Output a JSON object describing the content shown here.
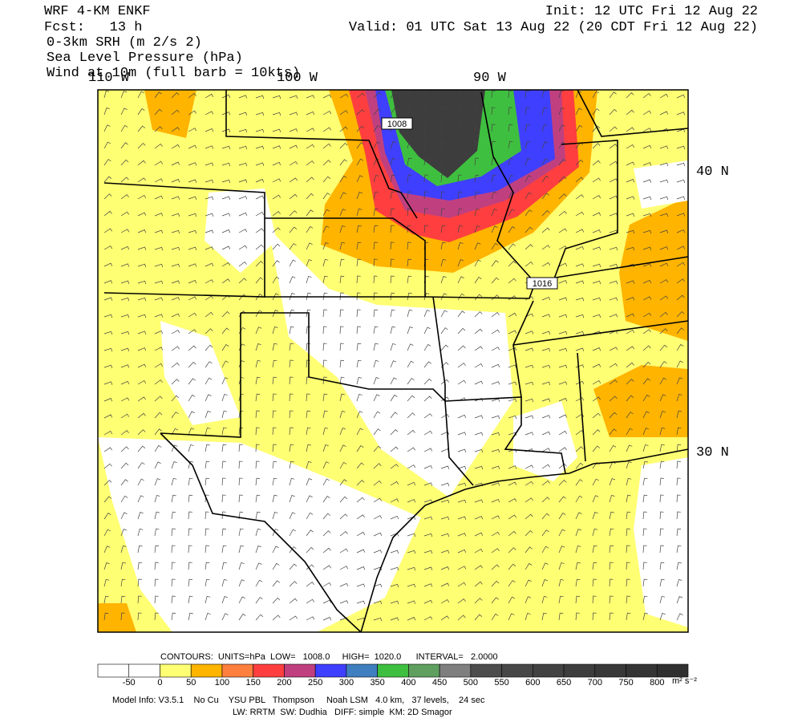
{
  "header": {
    "left": [
      "WRF 4-KM ENKF",
      "Fcst:   13 h",
      "0-3km SRH (m 2/s 2)",
      "Sea Level Pressure (hPa)",
      "Wind at 10m (full barb = 10kts)"
    ],
    "right": [
      "Init: 12 UTC Fri 12 Aug 22",
      "Valid: 01 UTC Sat 13 Aug 22 (20 CDT Fri 12 Aug 22)"
    ]
  },
  "map": {
    "lon_labels": [
      "110 W",
      "100 W",
      "90 W"
    ],
    "lat_labels": [
      "40 N",
      "30 N"
    ],
    "contour_labels": [
      "1008",
      "1016"
    ]
  },
  "contours": "CONTOURS:  UNITS=hPa  LOW=   1008.0     HIGH=  1020.0      INTERVAL=   2.0000",
  "colorbar": {
    "ticks": [
      -50,
      0,
      50,
      100,
      150,
      200,
      250,
      300,
      350,
      400,
      450,
      500,
      550,
      600,
      650,
      700,
      750,
      800
    ],
    "colors": [
      "#ffffff",
      "#ffffff",
      "#ffff73",
      "#ffb400",
      "#ff7f3f",
      "#ff3f3f",
      "#c0407f",
      "#3f3fff",
      "#3f7fc0",
      "#3fbf3f",
      "#5f9f5f",
      "#7f7f7f",
      "#4c4c4c",
      "#474747",
      "#424242",
      "#3d3d3d",
      "#383838",
      "#343434",
      "#303030"
    ],
    "units": "m² s⁻²"
  },
  "footer": [
    "Model Info: V3.5.1    No Cu    YSU PBL   Thompson     Noah LSM   4.0 km,   37 levels,    24 sec",
    "LW: RRTM  SW: Dudhia   DIFF: simple  KM: 2D Smagor"
  ]
}
